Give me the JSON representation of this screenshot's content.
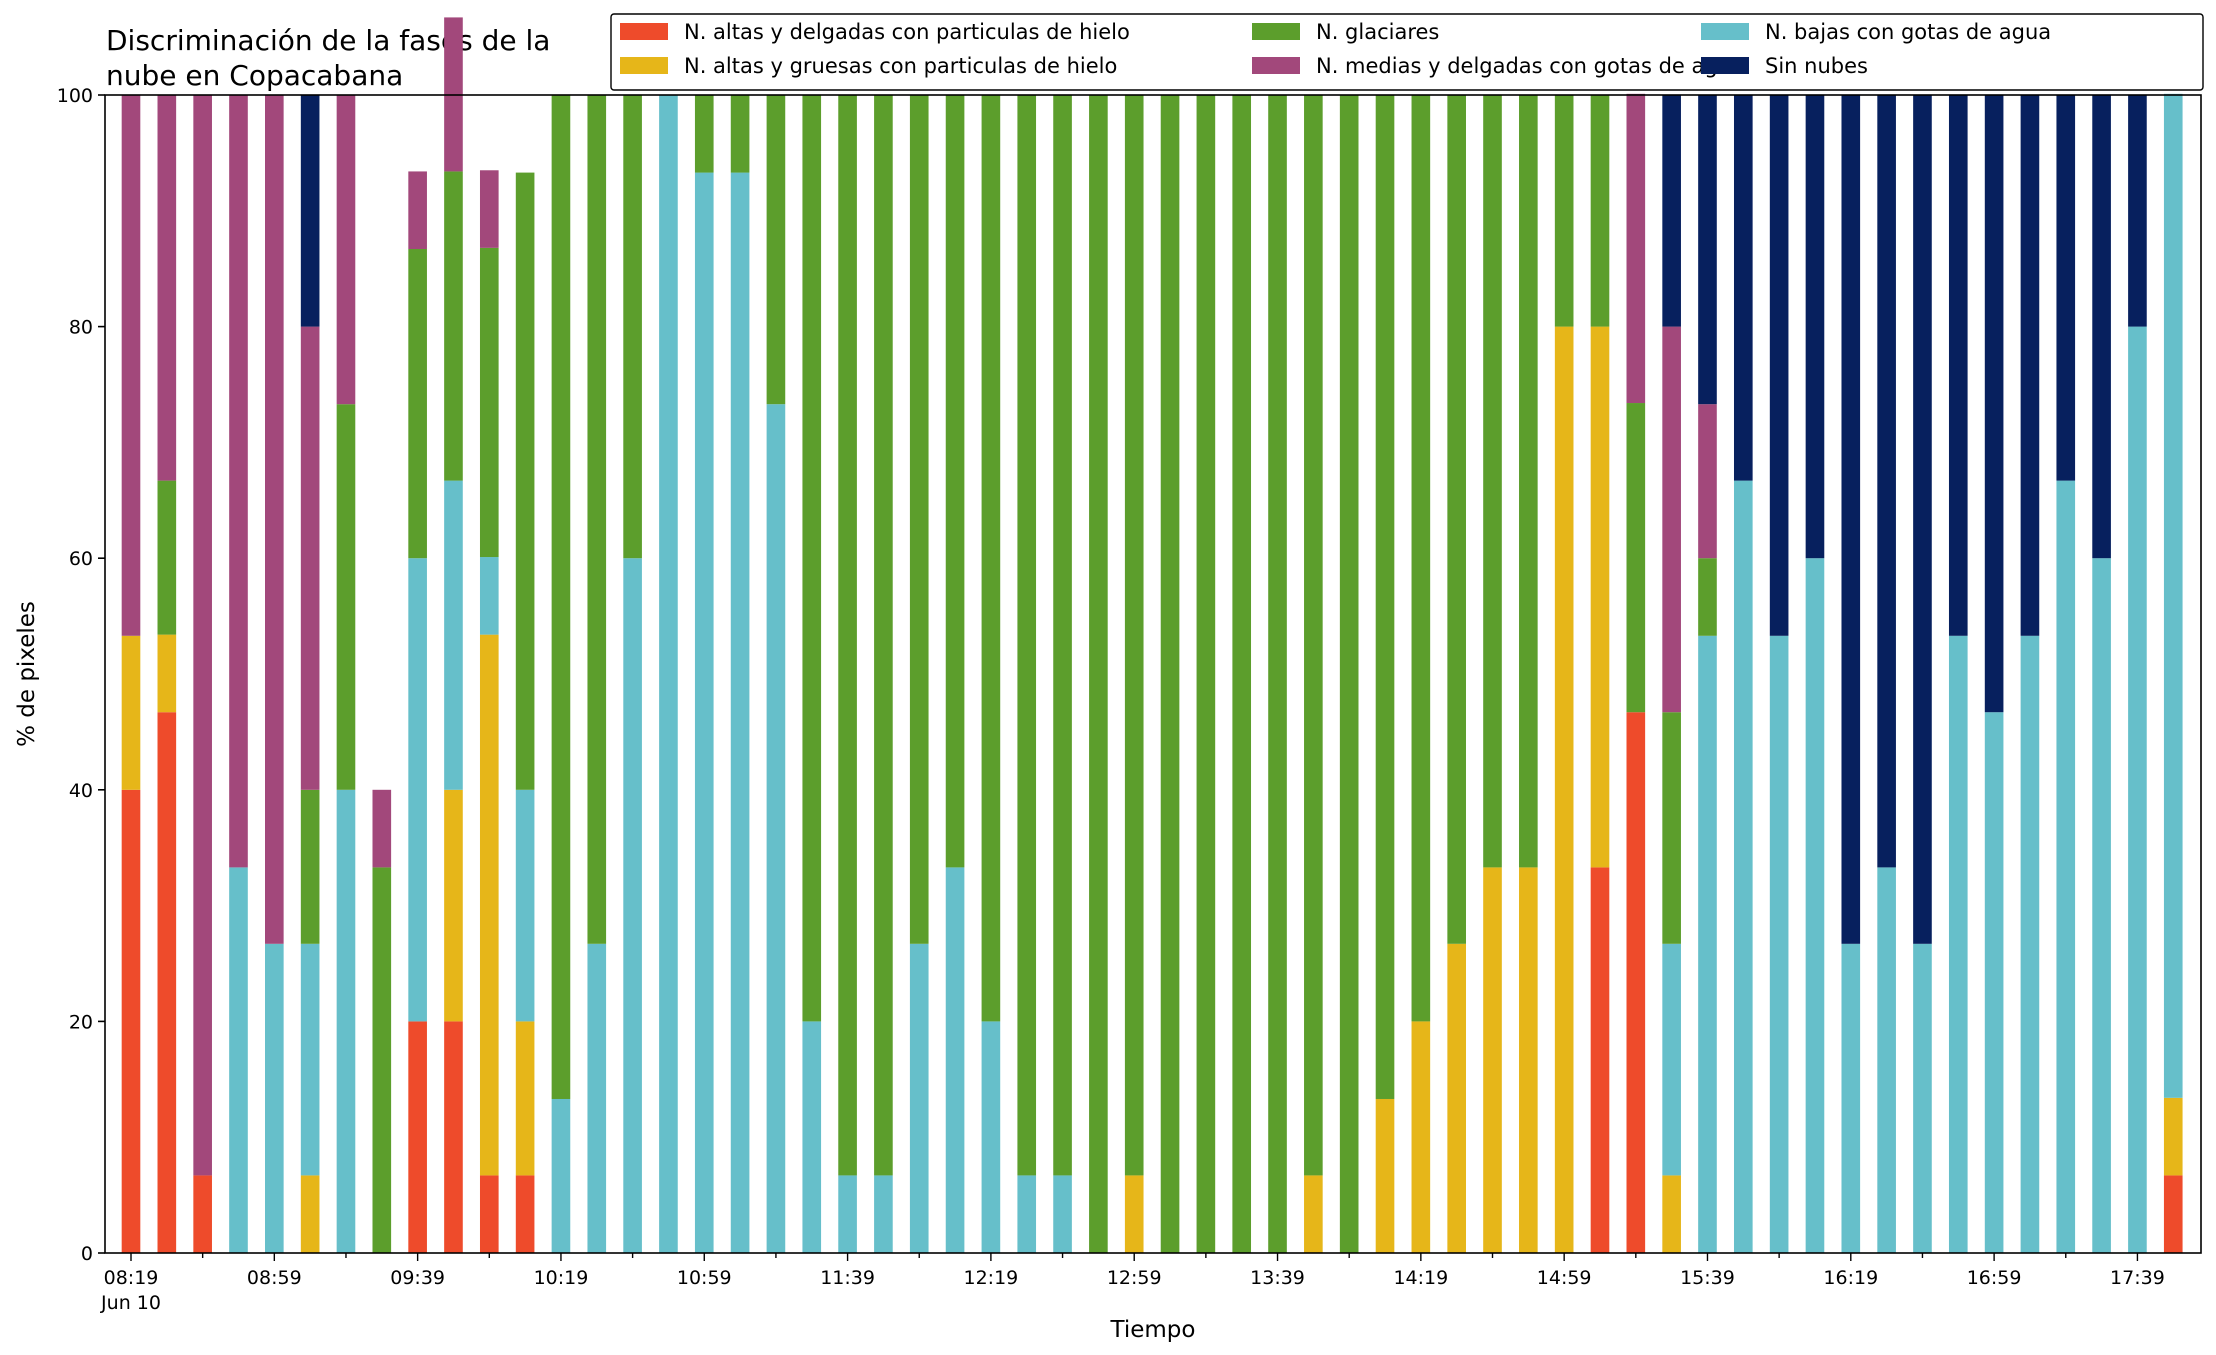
{
  "chart_data": {
    "type": "bar",
    "stacked": true,
    "title_lines": [
      "Discriminación de la fases de la",
      "nube en Copacabana"
    ],
    "xlabel": "Tiempo",
    "ylabel": "% de pixeles",
    "ylim": [
      0,
      100
    ],
    "yticks": [
      "0",
      "20",
      "40",
      "60",
      "80",
      "100"
    ],
    "x_date_label": "Jun 10",
    "xtick_labels": [
      "08:19",
      "08:59",
      "09:39",
      "10:19",
      "10:59",
      "11:39",
      "12:19",
      "12:59",
      "13:39",
      "14:19",
      "14:59",
      "15:39",
      "16:19",
      "16:59",
      "17:39"
    ],
    "times": [
      "08:19",
      "08:29",
      "08:39",
      "08:49",
      "08:59",
      "09:09",
      "09:19",
      "09:29",
      "09:39",
      "09:49",
      "09:59",
      "10:09",
      "10:19",
      "10:29",
      "10:39",
      "10:49",
      "10:59",
      "11:09",
      "11:19",
      "11:29",
      "11:39",
      "11:49",
      "11:59",
      "12:09",
      "12:19",
      "12:29",
      "12:39",
      "12:49",
      "12:59",
      "13:09",
      "13:19",
      "13:29",
      "13:39",
      "13:49",
      "13:59",
      "14:09",
      "14:19",
      "14:29",
      "14:39",
      "14:49",
      "14:59",
      "15:09",
      "15:19",
      "15:29",
      "15:39",
      "15:49",
      "15:59",
      "16:09",
      "16:19",
      "16:29",
      "16:39",
      "16:49",
      "16:59",
      "17:09",
      "17:19",
      "17:29",
      "17:39",
      "17:49"
    ],
    "legend_position": "top-right",
    "legend_order": [
      0,
      1,
      3,
      4,
      2,
      5
    ],
    "series": [
      {
        "name": "N. altas y delgadas con particulas de hielo",
        "color": "#ee4b2b",
        "values": [
          40,
          46.7,
          6.7,
          0,
          0,
          0,
          0,
          0,
          20,
          20,
          6.7,
          6.7,
          0,
          0,
          0,
          0,
          0,
          0,
          0,
          0,
          0,
          0,
          0,
          0,
          0,
          0,
          0,
          0,
          0,
          0,
          0,
          0,
          0,
          0,
          0,
          0,
          0,
          0,
          0,
          0,
          0,
          33.3,
          46.7,
          0,
          0,
          0,
          0,
          0,
          0,
          0,
          0,
          0,
          0,
          0,
          0,
          0,
          0,
          6.7
        ]
      },
      {
        "name": "N. altas y gruesas con particulas de hielo",
        "color": "#e6b619",
        "values": [
          13.3,
          6.7,
          0,
          0,
          0,
          6.7,
          0,
          0,
          0,
          20,
          46.7,
          13.3,
          0,
          0,
          0,
          0,
          0,
          0,
          0,
          0,
          0,
          0,
          0,
          0,
          0,
          0,
          0,
          0,
          6.7,
          0,
          0,
          0,
          0,
          6.7,
          0,
          13.3,
          20,
          26.7,
          33.3,
          33.3,
          80,
          46.7,
          0,
          6.7,
          0,
          0,
          0,
          0,
          0,
          0,
          0,
          0,
          0,
          0,
          0,
          0,
          0,
          6.7
        ]
      },
      {
        "name": "N. bajas con gotas de agua",
        "color": "#66bfca",
        "values": [
          0,
          0,
          0,
          33.3,
          26.7,
          20,
          40,
          0,
          40,
          26.7,
          6.7,
          20,
          13.3,
          26.7,
          60,
          100,
          93.3,
          93.3,
          73.3,
          20,
          6.7,
          6.7,
          26.7,
          33.3,
          20,
          6.7,
          6.7,
          0,
          0,
          0,
          0,
          0,
          0,
          0,
          0,
          0,
          0,
          0,
          0,
          0,
          0,
          0,
          0,
          20,
          53.3,
          66.7,
          53.3,
          60,
          26.7,
          33.3,
          26.7,
          53.3,
          46.7,
          53.3,
          66.7,
          60,
          80,
          86.7
        ]
      },
      {
        "name": "N. glaciares",
        "color": "#5c9e2c",
        "values": [
          0,
          13.3,
          0,
          0,
          0,
          13.3,
          33.3,
          33.3,
          26.7,
          26.7,
          26.7,
          53.3,
          86.7,
          73.3,
          40,
          0,
          6.7,
          6.7,
          26.7,
          80,
          93.3,
          93.3,
          73.3,
          66.7,
          80,
          93.3,
          93.3,
          100,
          93.3,
          100,
          100,
          100,
          100,
          93.3,
          100,
          86.7,
          80,
          73.3,
          66.7,
          66.7,
          20,
          20,
          26.7,
          20,
          6.7,
          0,
          0,
          0,
          0,
          0,
          0,
          0,
          0,
          0,
          0,
          0,
          0,
          0
        ]
      },
      {
        "name": "N. medias y delgadas con gotas de agua",
        "color": "#a2487b",
        "values": [
          46.7,
          33.3,
          93.3,
          66.7,
          73.3,
          40,
          26.7,
          6.7,
          6.7,
          13.3,
          6.7,
          0,
          0,
          0,
          0,
          0,
          0,
          0,
          0,
          0,
          0,
          0,
          0,
          0,
          0,
          0,
          0,
          0,
          0,
          0,
          0,
          0,
          0,
          0,
          0,
          0,
          0,
          0,
          0,
          0,
          0,
          0,
          26.7,
          33.3,
          13.3,
          0,
          0,
          0,
          0,
          0,
          0,
          0,
          0,
          0,
          0,
          0,
          0,
          0
        ]
      },
      {
        "name": "Sin nubes",
        "color": "#07205e",
        "values": [
          0,
          0,
          0,
          0,
          0,
          20,
          0,
          0,
          0,
          0,
          0,
          0,
          0,
          0,
          0,
          0,
          0,
          0,
          0,
          0,
          0,
          0,
          0,
          0,
          0,
          0,
          0,
          0,
          0,
          0,
          0,
          0,
          0,
          0,
          0,
          0,
          0,
          0,
          0,
          0,
          0,
          0,
          0,
          20,
          26.7,
          33.3,
          46.7,
          40,
          73.3,
          66.7,
          73.3,
          46.7,
          53.3,
          46.7,
          33.3,
          40,
          20,
          0
        ]
      }
    ]
  }
}
